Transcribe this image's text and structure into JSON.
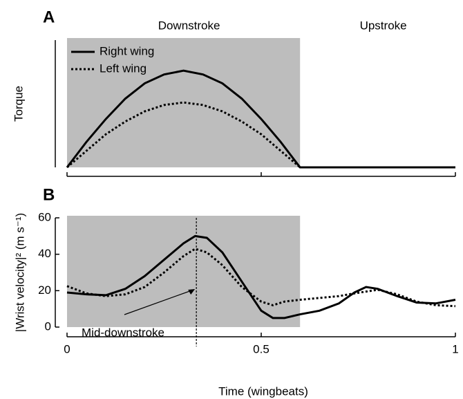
{
  "chart_data": [
    {
      "type": "line",
      "panel_label": "A",
      "ylabel": "Torque",
      "phase_labels": [
        "Downstroke",
        "Upstroke"
      ],
      "shaded_xlim": [
        0,
        0.6
      ],
      "shade_color": "#bdbdbd",
      "legend": "upper left",
      "xlim": [
        0,
        1
      ],
      "xticks": [
        0,
        0.5,
        1
      ],
      "ylim": [
        0,
        1
      ],
      "x": [
        0,
        0.05,
        0.1,
        0.15,
        0.2,
        0.25,
        0.3,
        0.35,
        0.4,
        0.45,
        0.5,
        0.55,
        0.6,
        0.7,
        0.8,
        0.9,
        1
      ],
      "series": [
        {
          "name": "Right wing",
          "color": "#000000",
          "style": "solid",
          "values": [
            0,
            0.2,
            0.38,
            0.54,
            0.66,
            0.73,
            0.76,
            0.73,
            0.66,
            0.54,
            0.38,
            0.2,
            0,
            0,
            0,
            0,
            0
          ]
        },
        {
          "name": "Left wing",
          "color": "#000000",
          "style": "dotted",
          "values": [
            0,
            0.13,
            0.26,
            0.36,
            0.44,
            0.49,
            0.51,
            0.49,
            0.44,
            0.36,
            0.26,
            0.13,
            0,
            0,
            0,
            0,
            0
          ]
        }
      ]
    },
    {
      "type": "line",
      "panel_label": "B",
      "ylabel": "|Wrist velocity|² (m s⁻¹)",
      "xlabel": "Time (wingbeats)",
      "shaded_xlim": [
        0,
        0.6
      ],
      "shade_color": "#bdbdbd",
      "annotation": {
        "text": "Mid-downstroke",
        "x": 0.333
      },
      "xlim": [
        0,
        1
      ],
      "xticks": [
        0,
        0.5,
        1
      ],
      "ylim": [
        0,
        60
      ],
      "yticks": [
        0,
        20,
        40,
        60
      ],
      "x": [
        0,
        0.05,
        0.1,
        0.15,
        0.2,
        0.25,
        0.3,
        0.33,
        0.36,
        0.4,
        0.45,
        0.5,
        0.53,
        0.56,
        0.6,
        0.65,
        0.7,
        0.74,
        0.77,
        0.8,
        0.85,
        0.9,
        0.95,
        1
      ],
      "series": [
        {
          "name": "Right wing",
          "color": "#000000",
          "style": "solid",
          "values": [
            19,
            18,
            17.5,
            21,
            28,
            37,
            46,
            50,
            49,
            41,
            25,
            9,
            5,
            5,
            7,
            9,
            13,
            19,
            22,
            21,
            17,
            13.5,
            13,
            15
          ]
        },
        {
          "name": "Left wing",
          "color": "#000000",
          "style": "dotted",
          "values": [
            22.5,
            18.5,
            17,
            18,
            22,
            30,
            39,
            43,
            41,
            34,
            22,
            14,
            12,
            14,
            15,
            16,
            17,
            18.5,
            19.5,
            20.5,
            18,
            14,
            12,
            11.5
          ]
        }
      ]
    }
  ]
}
